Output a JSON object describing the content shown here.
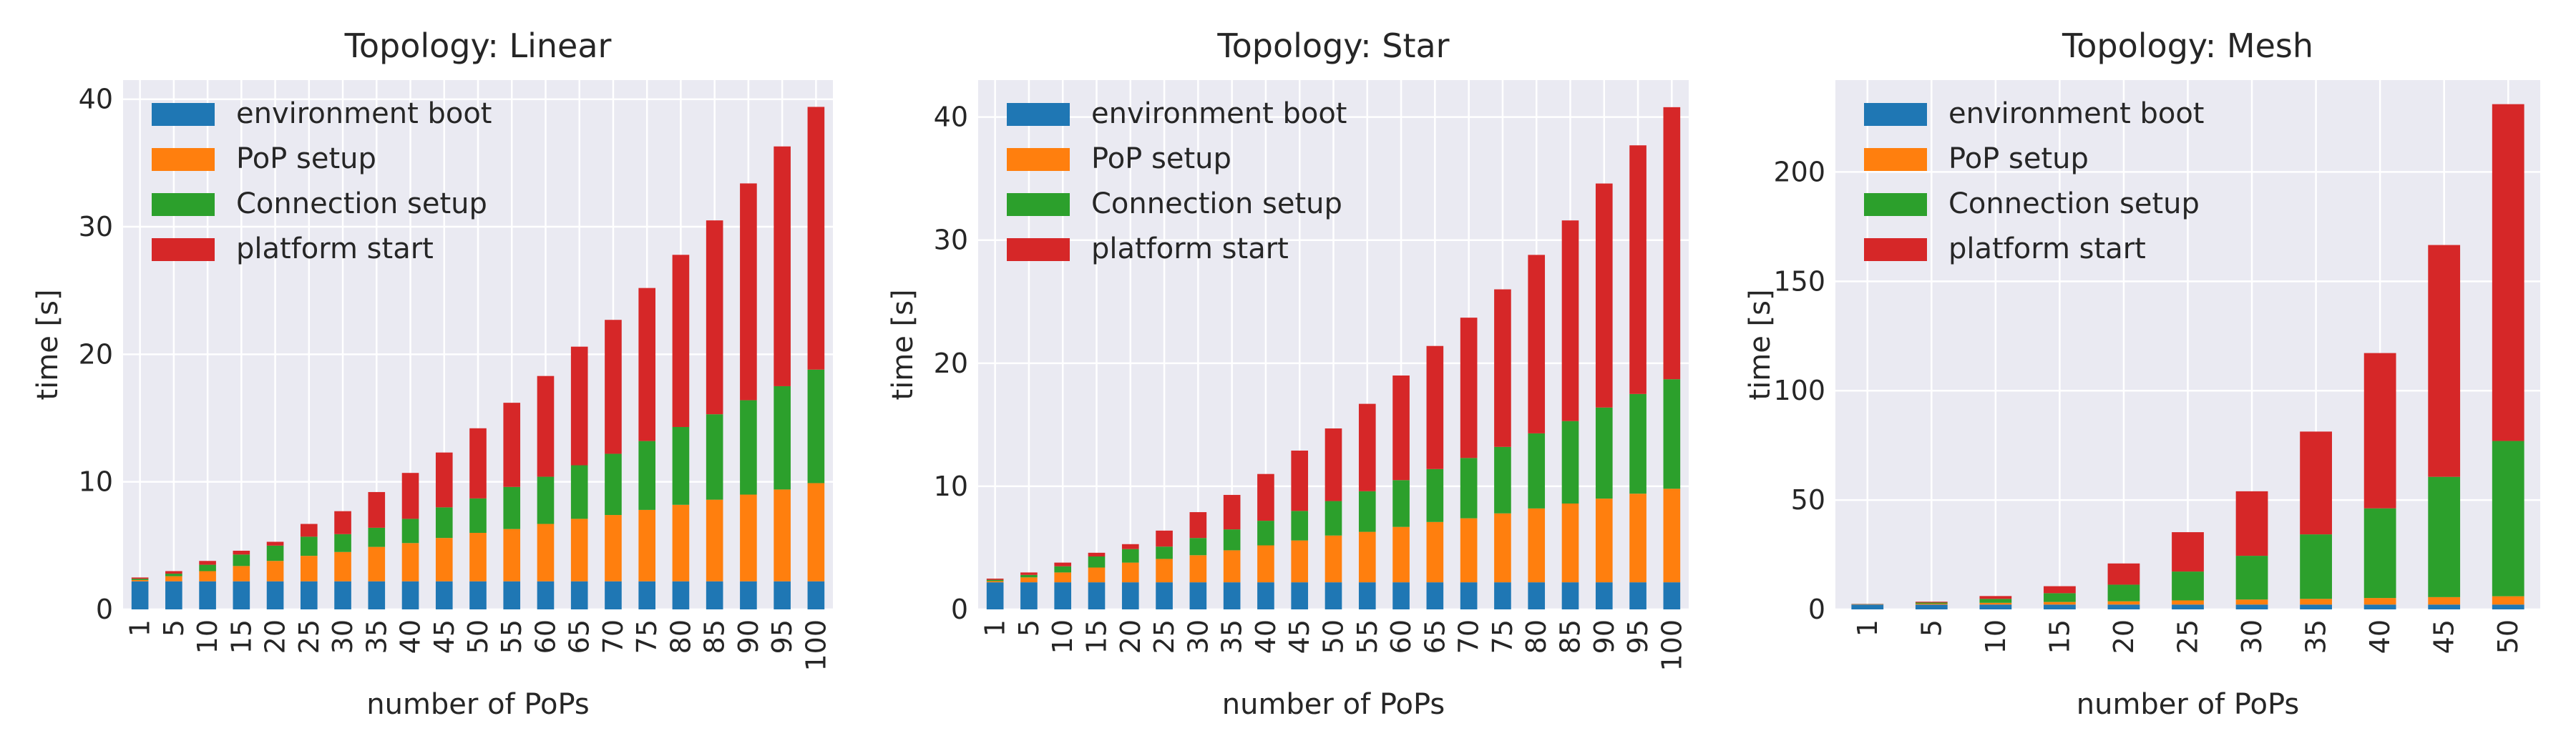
{
  "colors": {
    "environment boot": "#1f77b4",
    "PoP setup": "#ff7f0e",
    "Connection setup": "#2ca02c",
    "platform start": "#d62728",
    "plot_bg": "#eaeaf2",
    "grid": "#ffffff"
  },
  "chart_data": [
    {
      "type": "bar",
      "stacked": true,
      "title": "Topology: Linear",
      "xlabel": "number of PoPs",
      "ylabel": "time [s]",
      "ylim": [
        0,
        41.5
      ],
      "yticks": [
        0,
        10,
        20,
        30,
        40
      ],
      "grid": true,
      "legend": "top-left",
      "categories": [
        "1",
        "5",
        "10",
        "15",
        "20",
        "25",
        "30",
        "35",
        "40",
        "45",
        "50",
        "55",
        "60",
        "65",
        "70",
        "75",
        "80",
        "85",
        "90",
        "95",
        "100"
      ],
      "series": [
        {
          "name": "environment boot",
          "values": [
            2.2,
            2.2,
            2.2,
            2.2,
            2.2,
            2.2,
            2.2,
            2.2,
            2.2,
            2.2,
            2.2,
            2.2,
            2.2,
            2.2,
            2.2,
            2.2,
            2.2,
            2.2,
            2.2,
            2.2,
            2.2
          ]
        },
        {
          "name": "PoP setup",
          "values": [
            0.1,
            0.4,
            0.8,
            1.2,
            1.6,
            2.0,
            2.3,
            2.7,
            3.0,
            3.4,
            3.8,
            4.1,
            4.5,
            4.9,
            5.2,
            5.6,
            6.0,
            6.4,
            6.8,
            7.2,
            7.7
          ]
        },
        {
          "name": "Connection setup",
          "values": [
            0.1,
            0.2,
            0.5,
            0.9,
            1.2,
            1.5,
            1.4,
            1.5,
            1.9,
            2.4,
            2.7,
            3.3,
            3.7,
            4.2,
            4.8,
            5.4,
            6.1,
            6.7,
            7.4,
            8.1,
            8.9
          ]
        },
        {
          "name": "platform start",
          "values": [
            0.1,
            0.2,
            0.3,
            0.3,
            0.3,
            1.0,
            1.8,
            2.8,
            3.6,
            4.3,
            5.5,
            6.6,
            7.9,
            9.3,
            10.5,
            12.0,
            13.5,
            15.2,
            17.0,
            18.8,
            20.6
          ]
        }
      ]
    },
    {
      "type": "bar",
      "stacked": true,
      "title": "Topology: Star",
      "xlabel": "number of PoPs",
      "ylabel": "time [s]",
      "ylim": [
        0,
        43
      ],
      "yticks": [
        0,
        10,
        20,
        30,
        40
      ],
      "grid": true,
      "legend": "top-left",
      "categories": [
        "1",
        "5",
        "10",
        "15",
        "20",
        "25",
        "30",
        "35",
        "40",
        "45",
        "50",
        "55",
        "60",
        "65",
        "70",
        "75",
        "80",
        "85",
        "90",
        "95",
        "100"
      ],
      "series": [
        {
          "name": "environment boot",
          "values": [
            2.2,
            2.2,
            2.2,
            2.2,
            2.2,
            2.2,
            2.2,
            2.2,
            2.2,
            2.2,
            2.2,
            2.2,
            2.2,
            2.2,
            2.2,
            2.2,
            2.2,
            2.2,
            2.2,
            2.2,
            2.2
          ]
        },
        {
          "name": "PoP setup",
          "values": [
            0.1,
            0.4,
            0.8,
            1.2,
            1.6,
            1.9,
            2.2,
            2.6,
            3.0,
            3.4,
            3.8,
            4.1,
            4.5,
            4.9,
            5.2,
            5.6,
            6.0,
            6.4,
            6.8,
            7.2,
            7.6
          ]
        },
        {
          "name": "Connection setup",
          "values": [
            0.1,
            0.2,
            0.5,
            0.9,
            1.1,
            1.0,
            1.4,
            1.7,
            2.0,
            2.4,
            2.8,
            3.3,
            3.8,
            4.3,
            4.9,
            5.4,
            6.1,
            6.7,
            7.4,
            8.1,
            8.9
          ]
        },
        {
          "name": "platform start",
          "values": [
            0.1,
            0.2,
            0.3,
            0.3,
            0.4,
            1.3,
            2.1,
            2.8,
            3.8,
            4.9,
            5.9,
            7.1,
            8.5,
            10.0,
            11.4,
            12.8,
            14.5,
            16.3,
            18.2,
            20.2,
            22.1
          ]
        }
      ]
    },
    {
      "type": "bar",
      "stacked": true,
      "title": "Topology: Mesh",
      "xlabel": "number of PoPs",
      "ylabel": "time [s]",
      "ylim": [
        0,
        242
      ],
      "yticks": [
        0,
        50,
        100,
        150,
        200
      ],
      "grid": true,
      "legend": "top-left",
      "categories": [
        "1",
        "5",
        "10",
        "15",
        "20",
        "25",
        "30",
        "35",
        "40",
        "45",
        "50"
      ],
      "series": [
        {
          "name": "environment boot",
          "values": [
            2.2,
            2.2,
            2.2,
            2.2,
            2.2,
            2.2,
            2.2,
            2.2,
            2.2,
            2.2,
            2.2
          ]
        },
        {
          "name": "PoP setup",
          "values": [
            0.1,
            0.4,
            0.8,
            1.2,
            1.5,
            1.9,
            2.3,
            2.6,
            3.0,
            3.4,
            3.8
          ]
        },
        {
          "name": "Connection setup",
          "values": [
            0.1,
            0.5,
            1.8,
            4.0,
            7.6,
            13.2,
            20.0,
            29.5,
            41.0,
            55.0,
            71.0
          ]
        },
        {
          "name": "platform start",
          "values": [
            0.1,
            0.4,
            1.3,
            3.2,
            9.7,
            18.0,
            29.5,
            47.0,
            71.0,
            106.0,
            154.0
          ]
        }
      ]
    }
  ]
}
